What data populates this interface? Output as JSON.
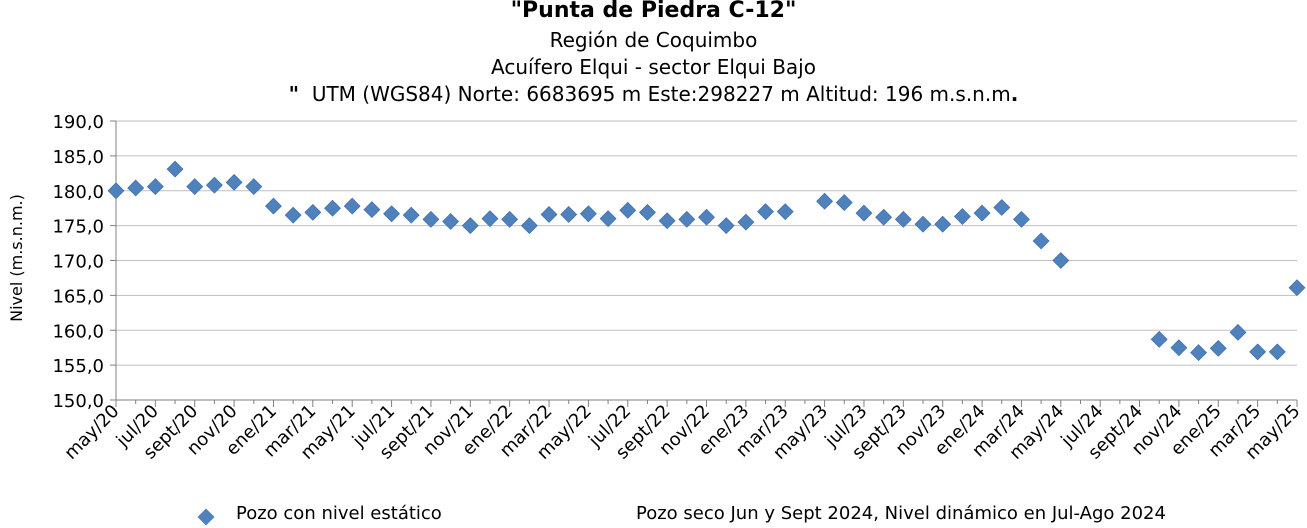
{
  "chart_data": {
    "type": "scatter",
    "title": "\"Punta de Piedra C-12\"",
    "subtitle_region": "Región de Coquimbo",
    "subtitle_aquifer": "Acuífero Elqui - sector Elqui Bajo",
    "subtitle_utm_quote": "\"",
    "subtitle_utm": "UTM (WGS84) Norte: 6683695 m   Este:298227 m   Altitud: 196 m.s.n.m",
    "subtitle_utm_dot": ".",
    "ylabel": "Nivel (m.s.n.m.)",
    "xlabel": "",
    "ylim": [
      150,
      190
    ],
    "yticks": [
      "150,0",
      "155,0",
      "160,0",
      "165,0",
      "170,0",
      "175,0",
      "180,0",
      "185,0",
      "190,0"
    ],
    "xticks": [
      "may/20",
      "jul/20",
      "sept/20",
      "nov/20",
      "ene/21",
      "mar/21",
      "may/21",
      "jul/21",
      "sept/21",
      "nov/21",
      "ene/22",
      "mar/22",
      "may/22",
      "jul/22",
      "sept/22",
      "nov/22",
      "ene/23",
      "mar/23",
      "may/23",
      "jul/23",
      "sept/23",
      "nov/23",
      "ene/24",
      "mar/24",
      "may/24",
      "jul/24",
      "sept/24",
      "nov/24",
      "ene/25",
      "mar/25",
      "may/25"
    ],
    "grid": "horizontal",
    "series": [
      {
        "name": "Pozo con nivel estático",
        "color": "#4F81BD",
        "marker": "diamond",
        "x": [
          "2020-05",
          "2020-06",
          "2020-07",
          "2020-08",
          "2020-09",
          "2020-10",
          "2020-11",
          "2020-12",
          "2021-01",
          "2021-02",
          "2021-03",
          "2021-04",
          "2021-05",
          "2021-06",
          "2021-07",
          "2021-08",
          "2021-09",
          "2021-10",
          "2021-11",
          "2021-12",
          "2022-01",
          "2022-02",
          "2022-03",
          "2022-04",
          "2022-05",
          "2022-06",
          "2022-07",
          "2022-08",
          "2022-09",
          "2022-10",
          "2022-11",
          "2022-12",
          "2023-01",
          "2023-02",
          "2023-03",
          "2023-05",
          "2023-06",
          "2023-07",
          "2023-08",
          "2023-09",
          "2023-10",
          "2023-11",
          "2023-12",
          "2024-01",
          "2024-02",
          "2024-03",
          "2024-04",
          "2024-05",
          "2024-10",
          "2024-11",
          "2024-12",
          "2025-01",
          "2025-02",
          "2025-03",
          "2025-04",
          "2025-05"
        ],
        "y": [
          180.0,
          180.4,
          180.6,
          183.1,
          180.6,
          180.8,
          181.2,
          180.6,
          177.8,
          176.5,
          176.9,
          177.5,
          177.8,
          177.3,
          176.7,
          176.5,
          175.9,
          175.6,
          175.0,
          176.0,
          175.9,
          175.0,
          176.6,
          176.6,
          176.7,
          176.0,
          177.2,
          176.9,
          175.7,
          175.9,
          176.2,
          175.0,
          175.5,
          177.0,
          177.0,
          178.5,
          178.3,
          176.8,
          176.2,
          175.9,
          175.2,
          175.2,
          176.3,
          176.8,
          177.6,
          175.9,
          172.8,
          170.0,
          158.7,
          157.5,
          156.8,
          157.4,
          159.7,
          156.9,
          156.9,
          166.1
        ]
      }
    ],
    "legend_position": "bottom-left",
    "annotation": "Pozo seco Jun y Sept 2024, Nivel dinámico en Jul-Ago 2024"
  }
}
